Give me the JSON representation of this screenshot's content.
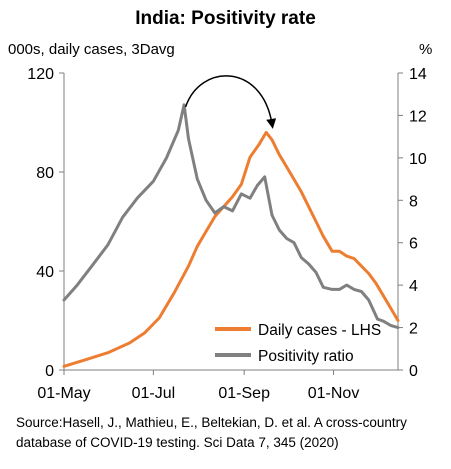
{
  "chart_data": {
    "type": "line",
    "title": "India: Positivity rate",
    "ylabel_left": "000s, daily cases, 3Davg",
    "ylabel_right": "%",
    "x_ticks": [
      "01-May",
      "01-Jul",
      "01-Sep",
      "01-Nov"
    ],
    "y_left_ticks": [
      "0",
      "40",
      "80",
      "120"
    ],
    "y_right_ticks": [
      "0",
      "2",
      "4",
      "6",
      "8",
      "10",
      "12",
      "14"
    ],
    "ylim_left": [
      0,
      120
    ],
    "ylim_right": [
      0,
      14
    ],
    "xlim": [
      "2020-05-01",
      "2020-12-15"
    ],
    "legend_position": "bottom-right",
    "series": [
      {
        "name": "Daily cases - LHS",
        "axis": "left",
        "color": "#ED7D31",
        "x": [
          "2020-05-01",
          "2020-05-15",
          "2020-05-31",
          "2020-06-15",
          "2020-06-25",
          "2020-07-05",
          "2020-07-15",
          "2020-07-25",
          "2020-07-31",
          "2020-08-06",
          "2020-08-12",
          "2020-08-18",
          "2020-08-24",
          "2020-08-30",
          "2020-09-05",
          "2020-09-11",
          "2020-09-16",
          "2020-09-20",
          "2020-09-25",
          "2020-09-30",
          "2020-10-05",
          "2020-10-10",
          "2020-10-15",
          "2020-10-20",
          "2020-10-25",
          "2020-10-31",
          "2020-11-05",
          "2020-11-10",
          "2020-11-15",
          "2020-11-20",
          "2020-11-25",
          "2020-11-30",
          "2020-12-05",
          "2020-12-10",
          "2020-12-15"
        ],
        "y": [
          1.5,
          4,
          7,
          11,
          15,
          21,
          31,
          42,
          50,
          56,
          62,
          66,
          70,
          75,
          86,
          91,
          96,
          93,
          87,
          82,
          77,
          72,
          66,
          60,
          54,
          48,
          48,
          46,
          45,
          42,
          39,
          35,
          30,
          25,
          20
        ]
      },
      {
        "name": "Positivity ratio",
        "axis": "right",
        "color": "#808080",
        "x": [
          "2020-05-01",
          "2020-05-10",
          "2020-05-20",
          "2020-05-31",
          "2020-06-10",
          "2020-06-20",
          "2020-07-01",
          "2020-07-10",
          "2020-07-18",
          "2020-07-22",
          "2020-07-25",
          "2020-07-31",
          "2020-08-06",
          "2020-08-12",
          "2020-08-18",
          "2020-08-24",
          "2020-08-30",
          "2020-09-05",
          "2020-09-10",
          "2020-09-15",
          "2020-09-20",
          "2020-09-25",
          "2020-09-30",
          "2020-10-05",
          "2020-10-10",
          "2020-10-15",
          "2020-10-20",
          "2020-10-25",
          "2020-10-31",
          "2020-11-05",
          "2020-11-10",
          "2020-11-15",
          "2020-11-20",
          "2020-11-25",
          "2020-12-01",
          "2020-12-05",
          "2020-12-10",
          "2020-12-15"
        ],
        "y": [
          3.3,
          4,
          4.9,
          5.9,
          7.2,
          8.1,
          8.9,
          10,
          11.3,
          12.5,
          10.9,
          9,
          8,
          7.4,
          7.7,
          7.5,
          8.3,
          8.1,
          8.7,
          9.1,
          7.3,
          6.6,
          6.2,
          6.0,
          5.3,
          5.0,
          4.6,
          3.9,
          3.8,
          3.8,
          4.0,
          3.8,
          3.7,
          3.3,
          2.4,
          2.3,
          2.1,
          2.0
        ]
      }
    ],
    "annotation": {
      "type": "curved-arrow",
      "from": {
        "x": "2020-07-23",
        "y_right": 12.4
      },
      "to": {
        "x": "2020-09-20",
        "y_right": 11.6
      }
    }
  },
  "source": "Source:Hasell, J., Mathieu, E., Beltekian, D. et al. A cross-country database of COVID-19 testing. Sci Data 7, 345 (2020)"
}
